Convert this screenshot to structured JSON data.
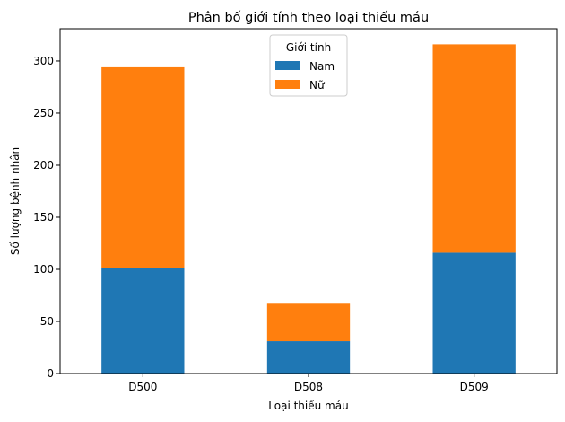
{
  "chart_data": {
    "type": "bar",
    "stacked": true,
    "title": "Phân bố giới tính theo loại thiếu máu",
    "xlabel": "Loại thiếu máu",
    "ylabel": "Số lượng bệnh nhân",
    "categories": [
      "D500",
      "D508",
      "D509"
    ],
    "series": [
      {
        "name": "Nam",
        "values": [
          101,
          31,
          116
        ],
        "color": "#1f77b4"
      },
      {
        "name": "Nữ",
        "values": [
          193,
          36,
          200
        ],
        "color": "#ff7f0e"
      }
    ],
    "ylim": [
      0,
      331
    ],
    "yticks": [
      0,
      50,
      100,
      150,
      200,
      250,
      300
    ],
    "legend": {
      "title": "Giới tính",
      "position": "top-center"
    },
    "grid": false
  }
}
